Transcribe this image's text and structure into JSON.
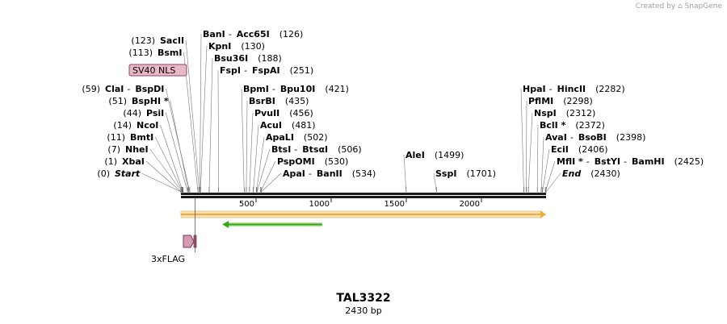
{
  "credit": {
    "prefix": "Created by",
    "brand": "SnapGene"
  },
  "plasmid": {
    "name": "TAL3322",
    "length_label": "2430 bp",
    "length_bp": 2430
  },
  "colors": {
    "backbone": "#1a1a1a",
    "orf_fill": "#f3a93b",
    "orf_outline": "#e6c48a",
    "primer_arrow": "#36a318",
    "primer_fill": "#b6e39c",
    "nls_fill": "#e7b8c8",
    "nls_stroke": "#9c3f6b",
    "flag_fill": "#d49ab2",
    "flag_stroke": "#7f3658",
    "leader": "#777777"
  },
  "ticks": [
    {
      "bp": 500,
      "label": "500"
    },
    {
      "bp": 1000,
      "label": "1000"
    },
    {
      "bp": 1500,
      "label": "1500"
    },
    {
      "bp": 2000,
      "label": "2000"
    }
  ],
  "features": [
    {
      "name": "SV40 NLS"
    },
    {
      "name": "3xFLAG"
    }
  ],
  "sites": [
    {
      "pos": "(0)",
      "bp": 0,
      "names": [
        "Start"
      ],
      "italic": true
    },
    {
      "pos": "(1)",
      "bp": 1,
      "names": [
        "XbaI"
      ]
    },
    {
      "pos": "(7)",
      "bp": 7,
      "names": [
        "NheI"
      ]
    },
    {
      "pos": "(11)",
      "bp": 11,
      "names": [
        "BmtI"
      ]
    },
    {
      "pos": "(14)",
      "bp": 14,
      "names": [
        "NcoI"
      ]
    },
    {
      "pos": "(44)",
      "bp": 44,
      "names": [
        "PsiI"
      ]
    },
    {
      "pos": "(51)",
      "bp": 51,
      "names": [
        "BspHI *"
      ]
    },
    {
      "pos": "(59)",
      "bp": 59,
      "names": [
        "ClaI",
        "BspDI"
      ]
    },
    {
      "pos": "(113)",
      "bp": 113,
      "names": [
        "BsmI"
      ]
    },
    {
      "pos": "(123)",
      "bp": 123,
      "names": [
        "SacII"
      ]
    },
    {
      "pos": "(126)",
      "bp": 126,
      "names": [
        "BanI",
        "Acc65I"
      ]
    },
    {
      "pos": "(130)",
      "bp": 130,
      "names": [
        "KpnI"
      ]
    },
    {
      "pos": "(188)",
      "bp": 188,
      "names": [
        "Bsu36I"
      ]
    },
    {
      "pos": "(251)",
      "bp": 251,
      "names": [
        "FspI",
        "FspAI"
      ]
    },
    {
      "pos": "(421)",
      "bp": 421,
      "names": [
        "BpmI",
        "Bpu10I"
      ]
    },
    {
      "pos": "(435)",
      "bp": 435,
      "names": [
        "BsrBI"
      ]
    },
    {
      "pos": "(456)",
      "bp": 456,
      "names": [
        "PvuII"
      ]
    },
    {
      "pos": "(481)",
      "bp": 481,
      "names": [
        "AcuI"
      ]
    },
    {
      "pos": "(502)",
      "bp": 502,
      "names": [
        "ApaLI"
      ]
    },
    {
      "pos": "(506)",
      "bp": 506,
      "names": [
        "BtsI",
        "BtsαI"
      ]
    },
    {
      "pos": "(530)",
      "bp": 530,
      "names": [
        "PspOMI"
      ]
    },
    {
      "pos": "(534)",
      "bp": 534,
      "names": [
        "ApaI",
        "BanII"
      ]
    },
    {
      "pos": "(1499)",
      "bp": 1499,
      "names": [
        "AleI"
      ]
    },
    {
      "pos": "(1701)",
      "bp": 1701,
      "names": [
        "SspI"
      ]
    },
    {
      "pos": "(2282)",
      "bp": 2282,
      "names": [
        "HpaI",
        "HincII"
      ]
    },
    {
      "pos": "(2298)",
      "bp": 2298,
      "names": [
        "PflMI"
      ]
    },
    {
      "pos": "(2312)",
      "bp": 2312,
      "names": [
        "NspI"
      ]
    },
    {
      "pos": "(2372)",
      "bp": 2372,
      "names": [
        "BclI *"
      ]
    },
    {
      "pos": "(2398)",
      "bp": 2398,
      "names": [
        "AvaI",
        "BsoBI"
      ]
    },
    {
      "pos": "(2406)",
      "bp": 2406,
      "names": [
        "EciI"
      ]
    },
    {
      "pos": "(2425)",
      "bp": 2425,
      "names": [
        "MflI *",
        "BstYI",
        "BamHI"
      ]
    },
    {
      "pos": "(2430)",
      "bp": 2430,
      "names": [
        "End"
      ],
      "italic": true
    }
  ]
}
